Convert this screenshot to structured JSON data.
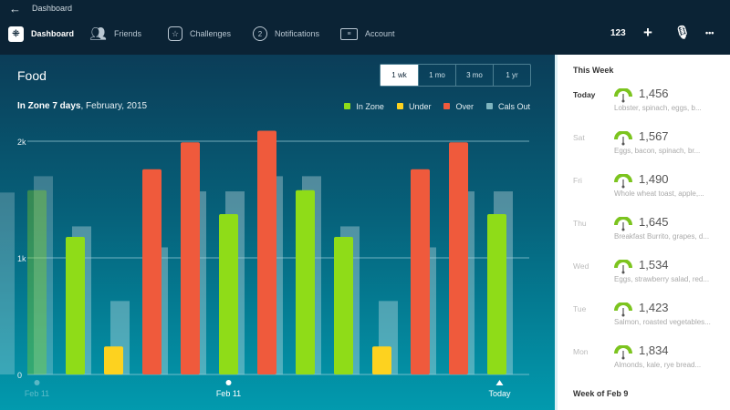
{
  "topbar": {
    "back_icon": "arrow-left-icon",
    "breadcrumb": "Dashboard",
    "nav": [
      {
        "label": "Dashboard",
        "icon": "fitbit-logo-icon"
      },
      {
        "label": "Friends",
        "icon": "friends-icon"
      },
      {
        "label": "Challenges",
        "icon": "star-badge-icon"
      },
      {
        "label": "Notifications",
        "icon": "chat-bubble-icon",
        "badge": "2"
      },
      {
        "label": "Account",
        "icon": "id-card-icon"
      }
    ],
    "actions": {
      "log_numbers": "123",
      "add": "+",
      "mic": "microphone-icon",
      "more": "•••"
    }
  },
  "main": {
    "title": "Food",
    "ranges": [
      "1 wk",
      "1 mo",
      "3 mo",
      "1 yr"
    ],
    "selected_range": "1 wk",
    "subtitle_bold": "In Zone 7 days",
    "subtitle_rest": ", February, 2015"
  },
  "chart_data": {
    "type": "bar",
    "ylim": [
      0,
      2200
    ],
    "yticks": [
      {
        "v": 0,
        "label": "0"
      },
      {
        "v": 1000,
        "label": "1k"
      },
      {
        "v": 2000,
        "label": "2k"
      }
    ],
    "legend": [
      {
        "name": "In Zone",
        "color": "#8fdc18"
      },
      {
        "name": "Under",
        "color": "#fdd21f"
      },
      {
        "name": "Over",
        "color": "#ef5a3c"
      },
      {
        "name": "Cals Out",
        "color": "#7fb5bf"
      }
    ],
    "days": [
      {
        "status": null,
        "food": null,
        "cals_out": 1560,
        "faded": true
      },
      {
        "status": "zone",
        "food": 1580,
        "cals_out": 1700,
        "faded": true
      },
      {
        "status": "zone",
        "food": 1180,
        "cals_out": 1270
      },
      {
        "status": "under",
        "food": 240,
        "cals_out": 630
      },
      {
        "status": "over",
        "food": 1760,
        "cals_out": 1090
      },
      {
        "status": "over",
        "food": 1990,
        "cals_out": 1570
      },
      {
        "status": "zone",
        "food": 1375,
        "cals_out": 1570
      },
      {
        "status": "over",
        "food": 2090,
        "cals_out": 1700
      },
      {
        "status": "zone",
        "food": 1580,
        "cals_out": 1700
      },
      {
        "status": "zone",
        "food": 1180,
        "cals_out": 1270
      },
      {
        "status": "under",
        "food": 240,
        "cals_out": 630
      },
      {
        "status": "over",
        "food": 1760,
        "cals_out": 1090
      },
      {
        "status": "over",
        "food": 1990,
        "cals_out": 1570
      },
      {
        "status": "zone",
        "food": 1375,
        "cals_out": 1570
      }
    ],
    "xlabels": [
      {
        "day": 1,
        "label": "Feb 11",
        "marker": "dot",
        "faded": true
      },
      {
        "day": 6,
        "label": "Feb 11",
        "marker": "dot"
      },
      {
        "day": 13,
        "label": "Today",
        "marker": "triangle"
      }
    ]
  },
  "sidebar": {
    "this_week": "This Week",
    "next_section": "Week of Feb 9",
    "entries": [
      {
        "day": "Today",
        "cals": "1,456",
        "foods": "Lobster, spinach, eggs, b..."
      },
      {
        "day": "Sat",
        "cals": "1,567",
        "foods": "Eggs, bacon, spinach, br..."
      },
      {
        "day": "Fri",
        "cals": "1,490",
        "foods": "Whole wheat toast, apple,..."
      },
      {
        "day": "Thu",
        "cals": "1,645",
        "foods": "Breakfast Burrito, grapes, d..."
      },
      {
        "day": "Wed",
        "cals": "1,534",
        "foods": "Eggs, strawberry salad, red..."
      },
      {
        "day": "Tue",
        "cals": "1,423",
        "foods": "Salmon, roasted vegetables..."
      },
      {
        "day": "Mon",
        "cals": "1,834",
        "foods": "Almonds, kale, rye bread..."
      }
    ]
  }
}
